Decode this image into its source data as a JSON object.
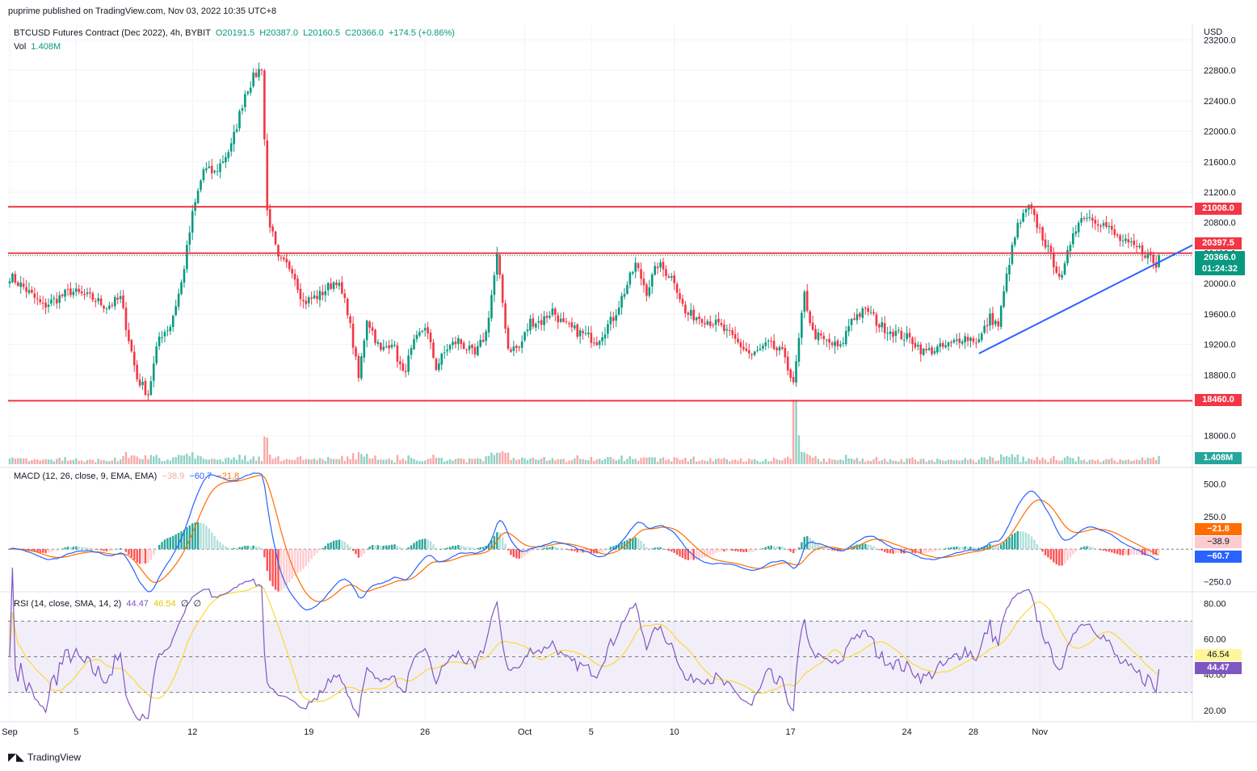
{
  "header": {
    "published": "puprime published on TradingView.com, Nov 03, 2022 10:35 UTC+8",
    "symbol": "BTCUSD Futures Contract (Dec 2022), 4h, BYBIT",
    "open": "O20191.5",
    "high": "H20387.0",
    "low": "L20160.5",
    "close": "C20366.0",
    "change": "+174.5 (+0.86%)",
    "vol_label": "Vol",
    "vol_value": "1.408M",
    "currency": "USD"
  },
  "macd_legend": {
    "label": "MACD (12, 26, close, 9, EMA, EMA)",
    "hist": "−38.9",
    "macd": "−60.7",
    "signal": "−21.8"
  },
  "rsi_legend": {
    "label": "RSI (14, close, SMA, 14, 2)",
    "rsi": "44.47",
    "sma": "46.54",
    "extra1": "∅",
    "extra2": "∅"
  },
  "tags": {
    "r1": "21008.0",
    "r2": "20397.5",
    "price": "20366.0",
    "countdown": "01:24:32",
    "s1": "18460.0",
    "vol": "1.408M",
    "macd_signal": "−21.8",
    "macd_hist": "−38.9",
    "macd_line": "−60.7",
    "rsi_sma": "46.54",
    "rsi_val": "44.47"
  },
  "footer": {
    "brand": "TradingView"
  },
  "colors": {
    "up": "#089981",
    "down": "#f23645",
    "level": "#f23645",
    "trend": "#2962ff",
    "macd": "#2962ff",
    "signal": "#ff6d00",
    "rsi": "#7e57c2",
    "rsi_sma": "#fdd835"
  },
  "chart_data": [
    {
      "type": "candlestick",
      "title": "BTCUSD Futures Contract (Dec 2022), 4h, BYBIT",
      "ylim": [
        17700,
        23300
      ],
      "y_ticks": [
        18000,
        18800,
        19200,
        19600,
        20000,
        20400,
        20800,
        21200,
        21600,
        22000,
        22400,
        22800,
        23200
      ],
      "y_tick_labels": [
        "18000.0",
        "18800.0",
        "19200.0",
        "19600.0",
        "20000.0",
        "20400.0",
        "20800.0",
        "21200.0",
        "21600.0",
        "22000.0",
        "22400.0",
        "22800.0",
        "23200.0"
      ],
      "x_tick_labels": [
        "Sep",
        "5",
        "12",
        "19",
        "26",
        "Oct",
        "5",
        "10",
        "17",
        "24",
        "28",
        "Nov"
      ],
      "anchors": [
        [
          0,
          20100
        ],
        [
          5,
          19950
        ],
        [
          12,
          19700
        ],
        [
          22,
          19900
        ],
        [
          30,
          19800
        ],
        [
          35,
          19700
        ],
        [
          40,
          19800
        ],
        [
          46,
          18750
        ],
        [
          50,
          18550
        ],
        [
          54,
          19300
        ],
        [
          58,
          19450
        ],
        [
          62,
          20000
        ],
        [
          66,
          20900
        ],
        [
          70,
          21500
        ],
        [
          74,
          21450
        ],
        [
          80,
          21800
        ],
        [
          85,
          22500
        ],
        [
          88,
          22700
        ],
        [
          91,
          22850
        ],
        [
          93,
          20950
        ],
        [
          97,
          20300
        ],
        [
          102,
          20200
        ],
        [
          106,
          19750
        ],
        [
          112,
          19850
        ],
        [
          118,
          20050
        ],
        [
          122,
          19650
        ],
        [
          126,
          18750
        ],
        [
          129,
          19550
        ],
        [
          134,
          19100
        ],
        [
          138,
          19250
        ],
        [
          142,
          18800
        ],
        [
          146,
          19200
        ],
        [
          150,
          19450
        ],
        [
          154,
          18900
        ],
        [
          158,
          19150
        ],
        [
          162,
          19250
        ],
        [
          168,
          19050
        ],
        [
          172,
          19350
        ],
        [
          176,
          20350
        ],
        [
          180,
          19150
        ],
        [
          184,
          19150
        ],
        [
          188,
          19500
        ],
        [
          192,
          19500
        ],
        [
          196,
          19650
        ],
        [
          200,
          19450
        ],
        [
          206,
          19350
        ],
        [
          212,
          19250
        ],
        [
          218,
          19550
        ],
        [
          222,
          19900
        ],
        [
          226,
          20250
        ],
        [
          230,
          19900
        ],
        [
          234,
          20250
        ],
        [
          240,
          20050
        ],
        [
          244,
          19600
        ],
        [
          250,
          19550
        ],
        [
          256,
          19450
        ],
        [
          262,
          19250
        ],
        [
          268,
          19050
        ],
        [
          274,
          19200
        ],
        [
          280,
          19050
        ],
        [
          283,
          18650
        ],
        [
          287,
          19850
        ],
        [
          290,
          19350
        ],
        [
          294,
          19250
        ],
        [
          300,
          19150
        ],
        [
          304,
          19550
        ],
        [
          310,
          19650
        ],
        [
          314,
          19450
        ],
        [
          320,
          19350
        ],
        [
          326,
          19250
        ],
        [
          330,
          19100
        ],
        [
          336,
          19150
        ],
        [
          340,
          19200
        ],
        [
          344,
          19300
        ],
        [
          350,
          19250
        ],
        [
          354,
          19550
        ],
        [
          357,
          19450
        ],
        [
          361,
          20300
        ],
        [
          364,
          20750
        ],
        [
          368,
          21000
        ],
        [
          372,
          20700
        ],
        [
          376,
          20350
        ],
        [
          380,
          20050
        ],
        [
          384,
          20700
        ],
        [
          388,
          20900
        ],
        [
          392,
          20850
        ],
        [
          396,
          20750
        ],
        [
          400,
          20600
        ],
        [
          404,
          20500
        ],
        [
          408,
          20450
        ],
        [
          412,
          20350
        ],
        [
          414,
          20200
        ],
        [
          415,
          20366
        ]
      ],
      "levels": [
        21008.0,
        20397.5,
        18460.0
      ],
      "trendline": [
        [
          350,
          19080
        ],
        [
          415,
          20280
        ]
      ],
      "last_price": 20366.0,
      "volume_last": "1.408M"
    },
    {
      "type": "line",
      "title": "MACD (12, 26, close, 9, EMA, EMA)",
      "ylim": [
        -320,
        620
      ],
      "y_ticks": [
        500,
        250,
        -250
      ],
      "y_tick_labels": [
        "500.0",
        "250.0",
        "−250.0"
      ],
      "series": [
        {
          "name": "MACD",
          "last": -60.7
        },
        {
          "name": "Signal",
          "last": -21.8
        },
        {
          "name": "Histogram",
          "last": -38.9
        }
      ]
    },
    {
      "type": "line",
      "title": "RSI (14, close, SMA, 14, 2)",
      "ylim": [
        14,
        86
      ],
      "y_ticks": [
        20,
        40,
        60,
        80
      ],
      "y_tick_labels": [
        "20.00",
        "40.00",
        "60.00",
        "80.00"
      ],
      "bands": [
        30,
        50,
        70
      ],
      "series": [
        {
          "name": "RSI",
          "last": 44.47
        },
        {
          "name": "SMA",
          "last": 46.54
        }
      ]
    }
  ]
}
